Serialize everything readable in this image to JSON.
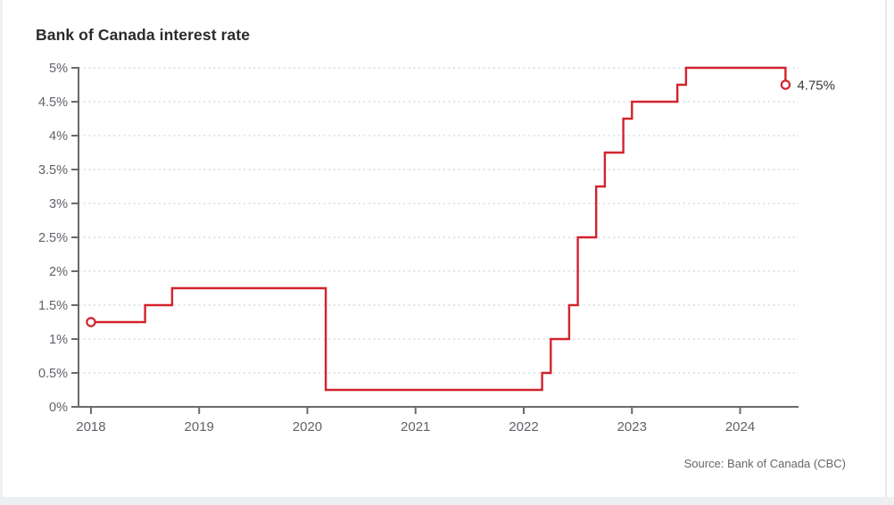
{
  "header": {
    "title": "Bank of Canada interest rate"
  },
  "footer": {
    "source": "Source: Bank of Canada (CBC)"
  },
  "colors": {
    "line": "#d2232e",
    "axis": "#6a6a6a",
    "grid": "#c6cdd6",
    "tick_label": "#5f6368",
    "end_label": "#37393c"
  },
  "chart_data": {
    "type": "line",
    "subtype": "step-after",
    "title": "Bank of Canada interest rate",
    "xlabel": "",
    "ylabel": "",
    "legend_position": "none",
    "grid": "horizontal-dashed",
    "xlim": [
      2017.885,
      2024.54
    ],
    "ylim": [
      0,
      5
    ],
    "x_tick_values": [
      2018,
      2019,
      2020,
      2021,
      2022,
      2023,
      2024
    ],
    "x_tick_labels": [
      "2018",
      "2019",
      "2020",
      "2021",
      "2022",
      "2023",
      "2024"
    ],
    "y_tick_values": [
      0,
      0.5,
      1,
      1.5,
      2,
      2.5,
      3,
      3.5,
      4,
      4.5,
      5
    ],
    "y_tick_labels": [
      "0%",
      "0.5%",
      "1%",
      "1.5%",
      "2%",
      "2.5%",
      "3%",
      "3.5%",
      "4%",
      "4.5%",
      "5%"
    ],
    "end_label": "4.75%",
    "markers": [
      "first-point-open-circle",
      "last-point-open-circle"
    ],
    "series": [
      {
        "name": "Bank of Canada interest rate",
        "color": "#d2232e",
        "points": [
          {
            "date": "Jan 2018",
            "x": 2018.0,
            "rate": 1.25
          },
          {
            "date": "Jul 2018",
            "x": 2018.5,
            "rate": 1.5
          },
          {
            "date": "Oct 2018",
            "x": 2018.75,
            "rate": 1.75
          },
          {
            "date": "Mar 2020",
            "x": 2020.17,
            "rate": 0.25
          },
          {
            "date": "Mar 2022",
            "x": 2022.17,
            "rate": 0.5
          },
          {
            "date": "Apr 2022",
            "x": 2022.25,
            "rate": 1.0
          },
          {
            "date": "Jun 2022",
            "x": 2022.42,
            "rate": 1.5
          },
          {
            "date": "Jul 2022",
            "x": 2022.5,
            "rate": 2.5
          },
          {
            "date": "Sep 2022",
            "x": 2022.67,
            "rate": 3.25
          },
          {
            "date": "Oct 2022",
            "x": 2022.75,
            "rate": 3.75
          },
          {
            "date": "Dec 2022",
            "x": 2022.92,
            "rate": 4.25
          },
          {
            "date": "Jan 2023",
            "x": 2023.0,
            "rate": 4.5
          },
          {
            "date": "Jun 2023",
            "x": 2023.42,
            "rate": 4.75
          },
          {
            "date": "Jul 2023",
            "x": 2023.5,
            "rate": 5.0
          },
          {
            "date": "Jun 2024",
            "x": 2024.42,
            "rate": 4.75
          }
        ]
      }
    ]
  }
}
